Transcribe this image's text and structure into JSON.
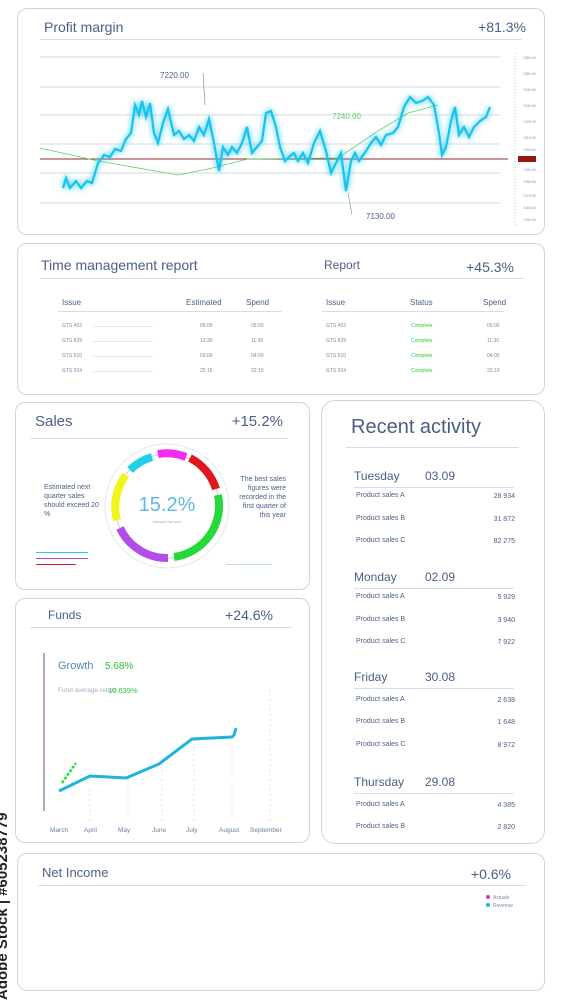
{
  "profit": {
    "title": "Profit margin",
    "value": "+81.3%",
    "label_high": "7220.00",
    "label_mid": "7240.00",
    "label_low": "7130.00",
    "y_ticks": [
      "7260.00",
      "7250.00",
      "7240.00",
      "7230.00",
      "7220.00",
      "7210.00",
      "7200.00",
      "7190.00",
      "7180.00",
      "7170.00",
      "7160.00",
      "7150.00"
    ]
  },
  "time": {
    "title": "Time management report",
    "report_title": "Report",
    "value": "+45.3%",
    "left_headers": [
      "Issue",
      "Estimated",
      "Spend"
    ],
    "right_headers": [
      "Issue",
      "Status",
      "Spend"
    ],
    "rows": [
      {
        "issue": "GTS 452",
        "est": "06:00",
        "spend": "05:00",
        "status": "Complete",
        "spend2": "05:00"
      },
      {
        "issue": "GTS 829",
        "est": "12:30",
        "spend": "11:30",
        "status": "Complete",
        "spend2": "11:30"
      },
      {
        "issue": "GTS 610",
        "est": "03:00",
        "spend": "04:00",
        "status": "Complete",
        "spend2": "04:00"
      },
      {
        "issue": "GTS 924",
        "est": "25:15",
        "spend": "22:10",
        "status": "Complete",
        "spend2": "22:10"
      }
    ]
  },
  "sales": {
    "title": "Sales",
    "value": "+15.2%",
    "center_value": "15.2%",
    "center_sub": "Managed last year",
    "left_text": "Estimated next quarter sales should exceed 20 %",
    "right_text": "The best sales figures were recorded in the first quarter of this year"
  },
  "funds": {
    "title": "Funds",
    "value": "+24.6%",
    "growth_label": "Growth",
    "growth_value": "5.68%",
    "avg_label": "Fund average return",
    "avg_value": "10.639%",
    "months": [
      "March",
      "April",
      "May",
      "June",
      "July",
      "August",
      "September"
    ]
  },
  "activity": {
    "title": "Recent activity",
    "groups": [
      {
        "day": "Tuesday",
        "date": "03.09",
        "rows": [
          {
            "label": "Product sales A",
            "value": "28 934"
          },
          {
            "label": "Product sales B",
            "value": "31 872"
          },
          {
            "label": "Product sales C",
            "value": "82 275"
          }
        ]
      },
      {
        "day": "Monday",
        "date": "02.09",
        "rows": [
          {
            "label": "Product sales A",
            "value": "5 929"
          },
          {
            "label": "Product sales B",
            "value": "3 940"
          },
          {
            "label": "Product sales C",
            "value": "7 922"
          }
        ]
      },
      {
        "day": "Friday",
        "date": "30.08",
        "rows": [
          {
            "label": "Product sales A",
            "value": "2 638"
          },
          {
            "label": "Product sales B",
            "value": "1 648"
          },
          {
            "label": "Product sales C",
            "value": "8 972"
          }
        ]
      },
      {
        "day": "Thursday",
        "date": "29.08",
        "rows": [
          {
            "label": "Product sales A",
            "value": "4 385"
          },
          {
            "label": "Product sales B",
            "value": "2 820"
          }
        ]
      }
    ]
  },
  "net": {
    "title": "Net Income",
    "value": "+0.6%",
    "legend": [
      "Actuals",
      "Revenue"
    ],
    "colors": [
      "#c040c0",
      "#1fb8d6"
    ]
  },
  "watermark": "Adobe Stock | #605238779"
}
